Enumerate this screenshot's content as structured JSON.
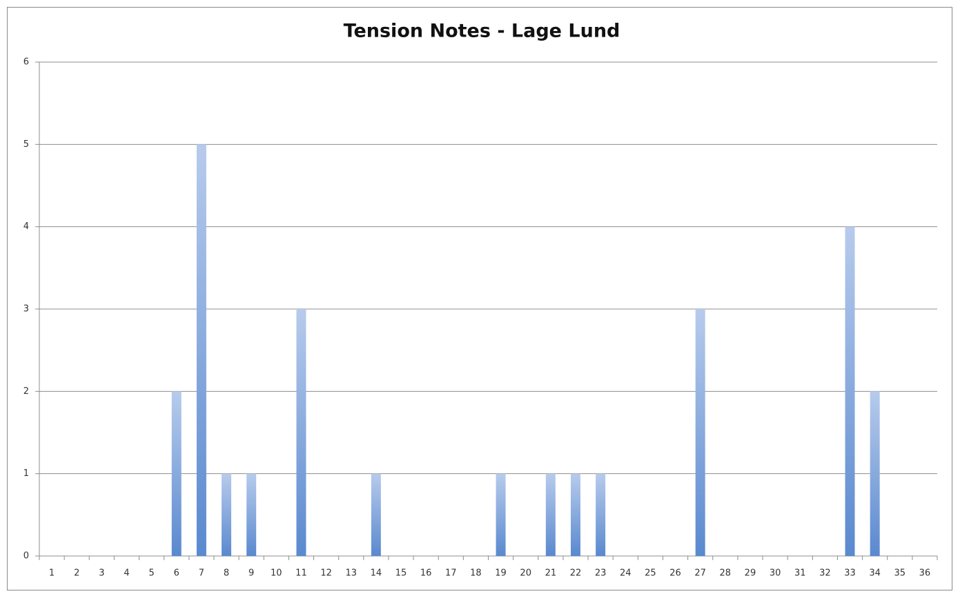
{
  "chart_data": {
    "type": "bar",
    "title": "Tension Notes - Lage Lund",
    "categories": [
      "1",
      "2",
      "3",
      "4",
      "5",
      "6",
      "7",
      "8",
      "9",
      "10",
      "11",
      "12",
      "13",
      "14",
      "15",
      "16",
      "17",
      "18",
      "19",
      "20",
      "21",
      "22",
      "23",
      "24",
      "25",
      "26",
      "27",
      "28",
      "29",
      "30",
      "31",
      "32",
      "33",
      "34",
      "35",
      "36"
    ],
    "values": [
      0,
      0,
      0,
      0,
      0,
      2,
      5,
      1,
      1,
      0,
      3,
      0,
      0,
      1,
      0,
      0,
      0,
      0,
      1,
      0,
      1,
      1,
      1,
      0,
      0,
      0,
      3,
      0,
      0,
      0,
      0,
      0,
      4,
      2,
      0,
      0
    ],
    "color": "#5b8bd0",
    "ylim": [
      0,
      6
    ],
    "yticks": [
      0,
      1,
      2,
      3,
      4,
      5,
      6
    ],
    "grid": true
  }
}
